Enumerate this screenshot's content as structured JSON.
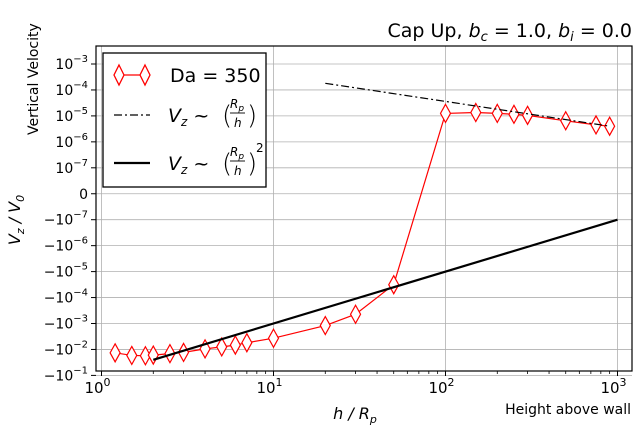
{
  "chart_data": {
    "type": "line",
    "title": "Cap Up, b_c = 1.0, b_i = 0.0",
    "title_parts": {
      "prefix": "Cap Up, ",
      "bc_sym": "b",
      "bc_sub": "c",
      "bc_val": " = 1.0, ",
      "bi_sym": "b",
      "bi_sub": "i",
      "bi_val": " = 0.0"
    },
    "xlabel": "h / R_p",
    "ylabel": "V_z / V_0",
    "corner_labels": {
      "top_left": "Vertical Velocity",
      "bottom_right": "Height above wall"
    },
    "x_scale": "log",
    "y_scale": "symlog",
    "xlim": [
      0.9,
      1100
    ],
    "ylim": [
      -0.14,
      0.0028
    ],
    "grid": true,
    "legend_position": "upper-left",
    "x_ticks": [
      {
        "value": 1,
        "base": "10",
        "exp": "0"
      },
      {
        "value": 10,
        "base": "10",
        "exp": "1"
      },
      {
        "value": 100,
        "base": "10",
        "exp": "2"
      },
      {
        "value": 1000,
        "base": "10",
        "exp": "3"
      }
    ],
    "y_ticks": [
      {
        "value": 0.001,
        "prefix": "10",
        "exp": "−3"
      },
      {
        "value": 0.0001,
        "prefix": "10",
        "exp": "−4"
      },
      {
        "value": 1e-05,
        "prefix": "10",
        "exp": "−5"
      },
      {
        "value": 1e-06,
        "prefix": "10",
        "exp": "−6"
      },
      {
        "value": 1e-07,
        "prefix": "10",
        "exp": "−7"
      },
      {
        "value": 0,
        "prefix": "0",
        "exp": ""
      },
      {
        "value": -1e-07,
        "prefix": "−10",
        "exp": "−7"
      },
      {
        "value": -1e-06,
        "prefix": "−10",
        "exp": "−6"
      },
      {
        "value": -1e-05,
        "prefix": "−10",
        "exp": "−5"
      },
      {
        "value": -0.0001,
        "prefix": "−10",
        "exp": "−4"
      },
      {
        "value": -0.001,
        "prefix": "−10",
        "exp": "−3"
      },
      {
        "value": -0.01,
        "prefix": "−10",
        "exp": "−2"
      },
      {
        "value": -0.1,
        "prefix": "−10",
        "exp": "−1"
      }
    ],
    "series": [
      {
        "name": "Da = 350",
        "style": "line-diamond",
        "color": "#ff0000",
        "x": [
          1.2,
          1.5,
          1.8,
          2.0,
          2.5,
          3.0,
          4.0,
          5.0,
          6.0,
          7.0,
          10.0,
          20.0,
          30.0,
          50.0,
          100.0,
          150.0,
          200.0,
          250.0,
          300.0,
          500.0,
          750.0,
          900.0
        ],
        "y": [
          -0.0135,
          -0.017,
          -0.0175,
          -0.0165,
          -0.0145,
          -0.013,
          -0.0095,
          -0.008,
          -0.0068,
          -0.0055,
          -0.0037,
          -0.0012,
          -0.00044,
          -3.2e-05,
          1.25e-05,
          1.35e-05,
          1.25e-05,
          1.15e-05,
          1.05e-05,
          6.5e-06,
          4.5e-06,
          4e-06
        ]
      },
      {
        "name": "V_z ~ (R_p/h)",
        "style": "dash-dot",
        "color": "#000000",
        "x": [
          20,
          900
        ],
        "y": [
          0.00018,
          4e-06
        ]
      },
      {
        "name": "V_z ~ (R_p/h)^2",
        "style": "solid",
        "color": "#000000",
        "x": [
          2,
          1000
        ],
        "y": [
          -0.025,
          -1e-07
        ]
      }
    ],
    "legend": [
      {
        "label": "Da = 350",
        "kind": "text"
      },
      {
        "lhs": "V",
        "lhs_sub": "z",
        "tilde": " ~ ",
        "num": "R",
        "num_sub": "p",
        "den": "h",
        "power": ""
      },
      {
        "lhs": "V",
        "lhs_sub": "z",
        "tilde": " ~ ",
        "num": "R",
        "num_sub": "p",
        "den": "h",
        "power": "2"
      }
    ]
  }
}
